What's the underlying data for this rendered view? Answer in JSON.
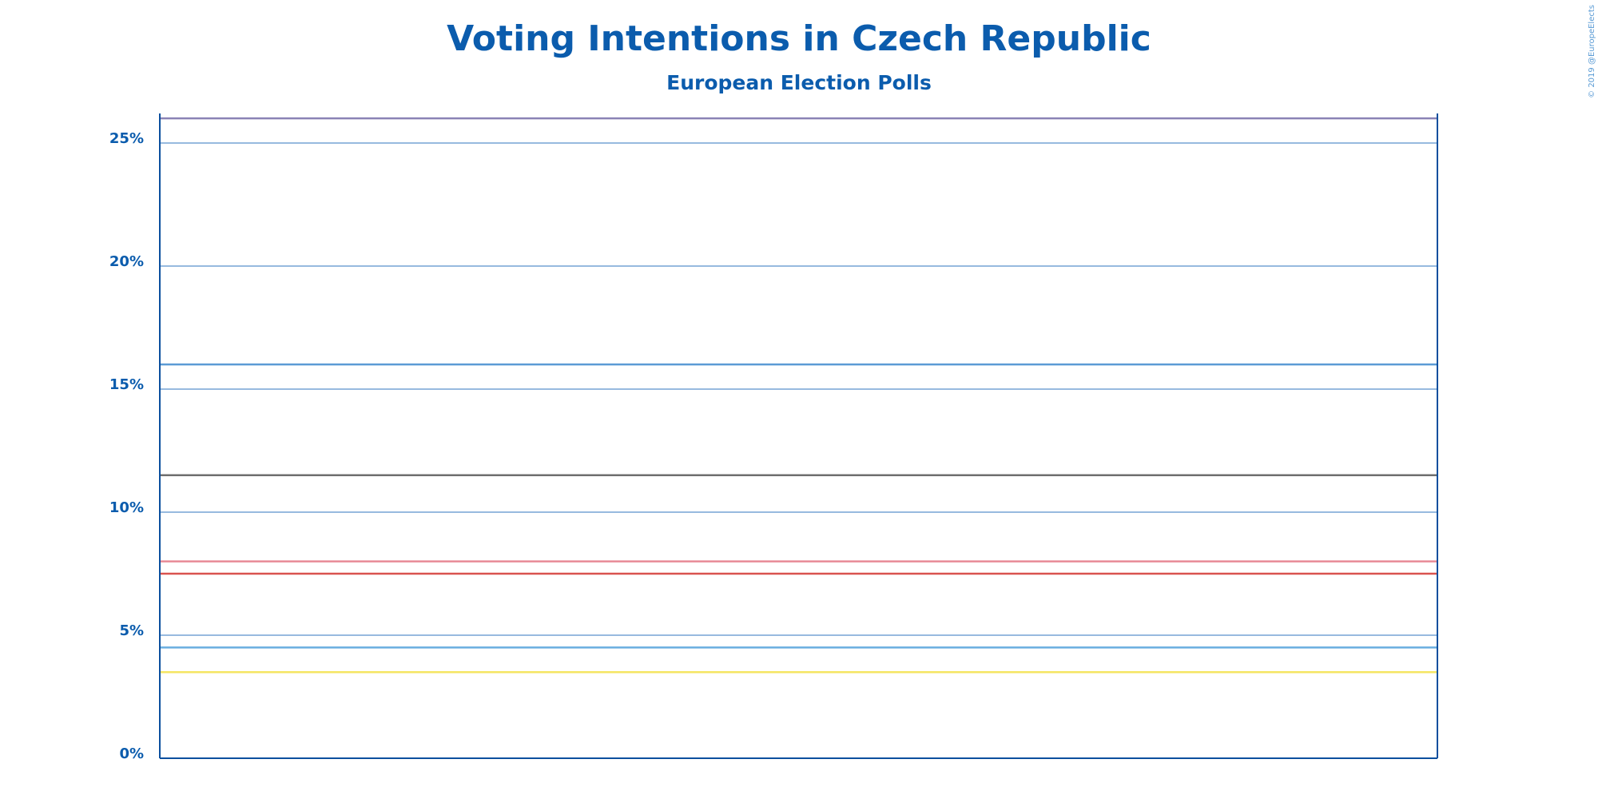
{
  "chart_data": {
    "type": "line",
    "title": "Voting Intentions in Czech Republic",
    "subtitle": "European Election Polls",
    "credit": "© 2019 @EuropeElects",
    "ylim": [
      0,
      26.2
    ],
    "yticks": [
      {
        "value": 0,
        "label": "0%"
      },
      {
        "value": 5,
        "label": "5%"
      },
      {
        "value": 10,
        "label": "10%"
      },
      {
        "value": 15,
        "label": "15%"
      },
      {
        "value": 20,
        "label": "20%"
      },
      {
        "value": 25,
        "label": "25%"
      }
    ],
    "grid": true,
    "series": [
      {
        "color": "#8a83b5",
        "values": [
          26
        ]
      },
      {
        "color": "#5b9bd5",
        "values": [
          16
        ]
      },
      {
        "color": "#6e6e6e",
        "values": [
          11.5
        ]
      },
      {
        "color": "#e88a96",
        "values": [
          8
        ]
      },
      {
        "color": "#d9534f",
        "values": [
          7.5
        ]
      },
      {
        "color": "#6aaee0",
        "values": [
          4.5
        ]
      },
      {
        "color": "#f5e663",
        "values": [
          3.5
        ]
      }
    ]
  }
}
